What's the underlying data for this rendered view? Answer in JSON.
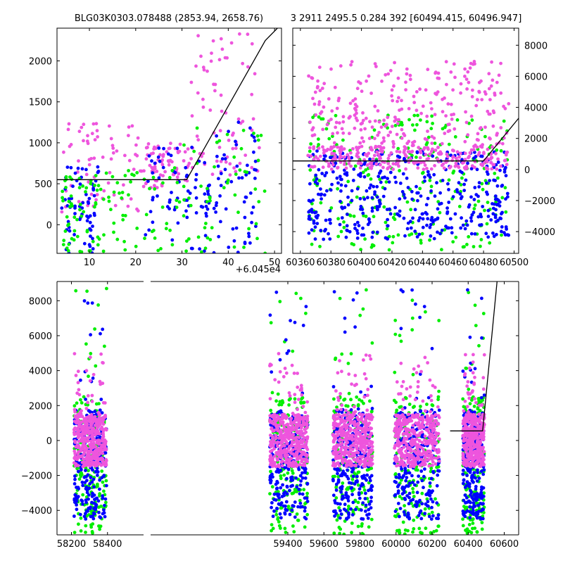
{
  "titles": {
    "left": "BLG03K0303.078488 (2853.94, 2658.76)",
    "right": "3 2911 2495.5 0.284 392 [60494.415, 60496.947]"
  },
  "offset_label": "+6.045e4",
  "colors": {
    "blue": "#0000ff",
    "green": "#00ee00",
    "magenta": "#ee55dd",
    "model": "#000000"
  },
  "chart_data": [
    {
      "type": "scatter",
      "panel": "top-left",
      "xlim": [
        3,
        51.5
      ],
      "ylim": [
        -350,
        2400
      ],
      "xticks": [
        10,
        20,
        30,
        40,
        50
      ],
      "yticks": [
        0,
        500,
        1000,
        1500,
        2000
      ],
      "x_offset": 60450,
      "ytick_side": "left",
      "model_line": {
        "x": [
          3,
          31,
          48,
          51.5
        ],
        "y": [
          550,
          550,
          2250,
          2450
        ]
      },
      "series": [
        {
          "color": "magenta",
          "clusters": [
            [
              4,
              22,
              60,
              1250
            ],
            [
              22,
              32,
              450,
              1000
            ],
            [
              32,
              47,
              600,
              2350
            ]
          ],
          "count": 220
        },
        {
          "color": "blue",
          "clusters": [
            [
              4,
              12,
              -350,
              750
            ],
            [
              22,
              36,
              -350,
              950
            ],
            [
              34,
              46,
              -350,
              1300
            ]
          ],
          "count": 200
        },
        {
          "color": "green",
          "clusters": [
            [
              4,
              12,
              -350,
              600
            ],
            [
              12,
              30,
              -350,
              700
            ],
            [
              30,
              48,
              -350,
              1200
            ]
          ],
          "count": 170
        }
      ]
    },
    {
      "type": "scatter",
      "panel": "top-right",
      "xlim": [
        60355,
        60503
      ],
      "ylim": [
        -5400,
        9100
      ],
      "xticks": [
        60360,
        60380,
        60400,
        60420,
        60440,
        60460,
        60480,
        60500
      ],
      "yticks": [
        -4000,
        -2000,
        0,
        2000,
        4000,
        6000,
        8000
      ],
      "ytick_side": "right",
      "model_line": {
        "x": [
          60355,
          60480,
          60503
        ],
        "y": [
          550,
          550,
          3300
        ]
      },
      "series": [
        {
          "color": "green",
          "clusters": [
            [
              60365,
              60497,
              -5200,
              3500
            ]
          ],
          "count": 260
        },
        {
          "color": "blue",
          "clusters": [
            [
              60365,
              60497,
              -4500,
              1200
            ]
          ],
          "count": 420
        },
        {
          "color": "magenta",
          "clusters": [
            [
              60365,
              60497,
              0,
              1500
            ],
            [
              60365,
              60497,
              1500,
              7000
            ]
          ],
          "count": 520
        }
      ]
    },
    {
      "type": "scatter",
      "panel": "bottom",
      "xlim": [
        58120,
        60680
      ],
      "ylim": [
        -5400,
        9100
      ],
      "xticks": [
        58200,
        58400,
        59400,
        59600,
        59800,
        60000,
        60200,
        60400,
        60600
      ],
      "yticks": [
        -4000,
        -2000,
        0,
        2000,
        4000,
        6000,
        8000
      ],
      "ytick_side": "left",
      "broken_axis_gap": [
        58420,
        59230
      ],
      "model_line": {
        "x": [
          60300,
          60480,
          60560
        ],
        "y": [
          550,
          550,
          9100
        ]
      },
      "groups": [
        [
          58215,
          58395
        ],
        [
          59300,
          59510
        ],
        [
          59650,
          59870
        ],
        [
          59990,
          60240
        ],
        [
          60370,
          60490
        ]
      ],
      "series": [
        {
          "color": "green",
          "y_range": [
            -5400,
            2500
          ],
          "count_per_group": 170
        },
        {
          "color": "blue",
          "y_range": [
            -4500,
            1800
          ],
          "count_per_group": 230
        },
        {
          "color": "magenta",
          "y_range": [
            -1500,
            1500
          ],
          "count_per_group": 380
        }
      ]
    }
  ]
}
